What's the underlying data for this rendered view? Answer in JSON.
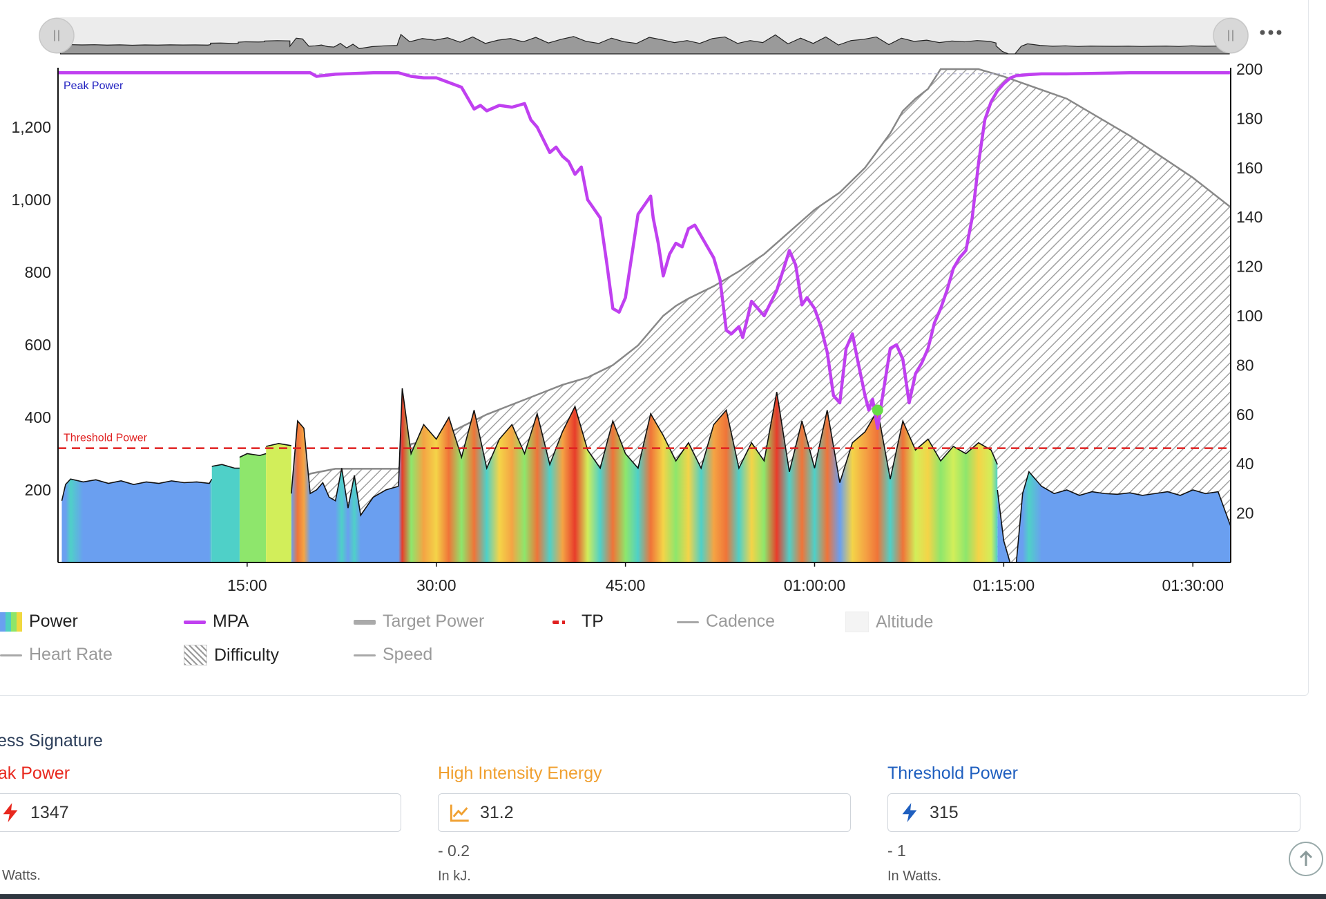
{
  "menu_icon": "more-horizontal-icon",
  "chart_data": {
    "type": "area",
    "x_label": "",
    "x_tick_labels": [
      "15:00",
      "30:00",
      "45:00",
      "01:00:00",
      "01:15:00",
      "01:30:00"
    ],
    "x_ticks_minutes": [
      15,
      30,
      45,
      60,
      75,
      90
    ],
    "x_range_minutes": [
      0,
      93
    ],
    "left_axis": {
      "ticks": [
        200,
        400,
        600,
        800,
        1000,
        1200
      ],
      "range": [
        0,
        1360
      ]
    },
    "right_axis": {
      "ticks": [
        20,
        40,
        60,
        80,
        100,
        120,
        140,
        160,
        180,
        200
      ],
      "range": [
        0,
        200
      ]
    },
    "annotations": {
      "peak_power_label": "Peak Power",
      "peak_power_value": 1347,
      "threshold_label": "Threshold Power",
      "threshold_value": 315
    },
    "series": [
      {
        "name": "Power",
        "axis": "left",
        "segments": [
          {
            "x": [
              0.3,
              0.6,
              1,
              2,
              3,
              4,
              5,
              6,
              7,
              8,
              9,
              10,
              11,
              12,
              12.2
            ],
            "y": [
              170,
              215,
              230,
              222,
              228,
              218,
              225,
              215,
              222,
              218,
              225,
              220,
              222,
              218,
              230
            ]
          },
          {
            "x": [
              12.2,
              13,
              14,
              14.4
            ],
            "y": [
              265,
              270,
              260,
              260
            ]
          },
          {
            "x": [
              14.4,
              15,
              16,
              16.5
            ],
            "y": [
              290,
              300,
              295,
              300
            ]
          },
          {
            "x": [
              16.5,
              17.5,
              18.5
            ],
            "y": [
              320,
              328,
              322
            ]
          },
          {
            "x": [
              18.5,
              19,
              19.5,
              20,
              20.5,
              21,
              21.5,
              22,
              22.5,
              23,
              23.5,
              24,
              25,
              26,
              27
            ],
            "y": [
              190,
              390,
              370,
              190,
              200,
              220,
              180,
              170,
              260,
              150,
              240,
              130,
              180,
              200,
              210
            ]
          },
          {
            "x": [
              27,
              27.3,
              28,
              29,
              30,
              31,
              32,
              33,
              34,
              35,
              36,
              37,
              38,
              39,
              40,
              41,
              42,
              43,
              44,
              45,
              46,
              47,
              48,
              49,
              50,
              51,
              52,
              53,
              54,
              55,
              56,
              57,
              58,
              59,
              60,
              61,
              62,
              63,
              64,
              65,
              66,
              67,
              68,
              69,
              70,
              71,
              72,
              73,
              74,
              74.5
            ],
            "y": [
              210,
              480,
              300,
              380,
              340,
              400,
              290,
              420,
              260,
              340,
              380,
              300,
              410,
              270,
              360,
              430,
              310,
              260,
              390,
              300,
              260,
              410,
              350,
              280,
              330,
              260,
              380,
              420,
              260,
              330,
              280,
              470,
              250,
              390,
              260,
              420,
              220,
              330,
              360,
              420,
              230,
              390,
              310,
              340,
              280,
              320,
              300,
              330,
              310,
              270
            ]
          },
          {
            "x": [
              74.5,
              75,
              75.5,
              76
            ],
            "y": [
              200,
              60,
              0,
              0
            ]
          },
          {
            "x": [
              76,
              76.5,
              77,
              78,
              79,
              80,
              81,
              82,
              83,
              84,
              85,
              86,
              87,
              88,
              89,
              90,
              91,
              92,
              93
            ],
            "y": [
              0,
              190,
              250,
              210,
              190,
              200,
              185,
              195,
              190,
              188,
              192,
              185,
              190,
              195,
              185,
              200,
              190,
              195,
              100
            ]
          }
        ]
      },
      {
        "name": "MPA",
        "axis": "left",
        "x": [
          0,
          20,
          20.5,
          22,
          25,
          27,
          28,
          29,
          30,
          32,
          33,
          33.5,
          34,
          35,
          36,
          37,
          37.5,
          38,
          39,
          39.5,
          40,
          40.5,
          41,
          41.5,
          42,
          43,
          43.5,
          44,
          44.5,
          45,
          46,
          47,
          47.2,
          47.6,
          48,
          48.5,
          49,
          49.5,
          50,
          50.5,
          51.5,
          52,
          52.5,
          53,
          53.4,
          54,
          54.3,
          55,
          56,
          57,
          58,
          58.5,
          59,
          59.4,
          60,
          60.5,
          61,
          61.5,
          62,
          62.5,
          63,
          63.4,
          64,
          64.3,
          64.6,
          65,
          65.4,
          66,
          66.5,
          67,
          67.5,
          68,
          68.5,
          69,
          69.5,
          70,
          70.5,
          71,
          71.5,
          72,
          72.5,
          73,
          73.5,
          74,
          74.5,
          75,
          75.5,
          76,
          77,
          78,
          80,
          85,
          93
        ],
        "y": [
          1350,
          1350,
          1340,
          1346,
          1350,
          1350,
          1340,
          1336,
          1336,
          1310,
          1250,
          1260,
          1245,
          1260,
          1255,
          1265,
          1220,
          1200,
          1130,
          1145,
          1120,
          1105,
          1070,
          1090,
          1000,
          950,
          830,
          700,
          690,
          730,
          960,
          1010,
          950,
          880,
          790,
          850,
          880,
          870,
          920,
          930,
          870,
          840,
          780,
          640,
          630,
          650,
          620,
          720,
          680,
          750,
          860,
          820,
          710,
          730,
          700,
          650,
          580,
          460,
          440,
          590,
          630,
          560,
          460,
          420,
          450,
          370,
          460,
          590,
          600,
          560,
          440,
          520,
          550,
          590,
          660,
          700,
          750,
          810,
          840,
          860,
          950,
          1100,
          1220,
          1270,
          1300,
          1320,
          1335,
          1342,
          1345,
          1347,
          1347,
          1350,
          1350
        ]
      },
      {
        "name": "Difficulty",
        "axis": "right",
        "x": [
          18.5,
          20,
          22,
          24,
          27,
          28,
          30,
          32,
          34,
          36,
          38,
          40,
          42,
          44,
          46,
          48,
          49,
          50,
          52,
          54,
          56,
          58,
          60,
          62,
          64,
          66,
          67,
          68,
          69,
          70,
          71.5,
          72,
          73,
          75,
          80,
          85,
          90,
          93
        ],
        "y": [
          30,
          36,
          38,
          38,
          38,
          48,
          50,
          55,
          60,
          64,
          68,
          72,
          75,
          80,
          88,
          100,
          104,
          107,
          112,
          118,
          125,
          134,
          143,
          150,
          160,
          174,
          183,
          188,
          192,
          200,
          200,
          200,
          200,
          197,
          188,
          173,
          156,
          144
        ]
      }
    ],
    "highlight_point": {
      "x": 65,
      "y": 420,
      "color": "#66dd44"
    },
    "legend": [
      {
        "name": "Power",
        "enabled": true
      },
      {
        "name": "MPA",
        "enabled": true
      },
      {
        "name": "Target Power",
        "enabled": false
      },
      {
        "name": "TP",
        "enabled": true
      },
      {
        "name": "Cadence",
        "enabled": false
      },
      {
        "name": "Altitude",
        "enabled": false
      },
      {
        "name": "Heart Rate",
        "enabled": false
      },
      {
        "name": "Difficulty",
        "enabled": true
      },
      {
        "name": "Speed",
        "enabled": false
      }
    ],
    "colors": {
      "mpa": "#c040f0",
      "threshold": "#e02020",
      "peak_label": "#2020c0",
      "difficulty": "#888888"
    }
  },
  "signature": {
    "title": "ess Signature",
    "peak_power": {
      "label": "eak Power",
      "value": "1347",
      "unit": "Watts.",
      "icon": "lightning-icon",
      "color": "#e8281e"
    },
    "high_intensity_energy": {
      "label": "High Intensity Energy",
      "value": "31.2",
      "delta": "- 0.2",
      "unit": "In kJ.",
      "icon": "trend-chart-icon",
      "color": "#f0a030"
    },
    "threshold_power": {
      "label": "Threshold Power",
      "value": "315",
      "delta": "- 1",
      "unit": "In Watts.",
      "icon": "lightning-icon",
      "color": "#1f5fbf"
    }
  }
}
